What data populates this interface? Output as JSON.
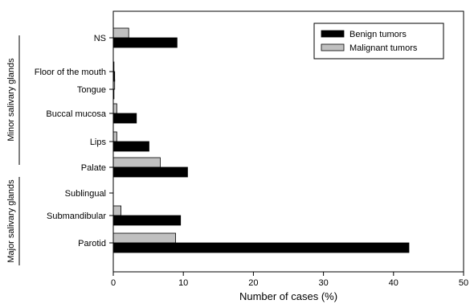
{
  "chart_data": {
    "type": "bar",
    "orientation": "horizontal",
    "title": "",
    "xlabel": "Number of cases (%)",
    "ylabel": "",
    "xlim": [
      0,
      50
    ],
    "xticks": [
      0,
      10,
      20,
      30,
      40,
      50
    ],
    "grid": false,
    "legend_position": "top-right",
    "categories": [
      "NS",
      "Floor of the mouth",
      "Tongue",
      "Buccal mucosa",
      "Lips",
      "Palate",
      "Sublingual",
      "Submandibular",
      "Parotid"
    ],
    "groups": [
      {
        "label": "Minor salivary glands",
        "categories": [
          "Floor of the mouth",
          "Tongue",
          "Buccal mucosa",
          "Lips",
          "Palate"
        ]
      },
      {
        "label": "Major salivary glands",
        "categories": [
          "Sublingual",
          "Submandibular",
          "Parotid"
        ]
      }
    ],
    "series": [
      {
        "name": "Malignant tumors",
        "color": "#c0c0c0",
        "values": [
          2.2,
          0.1,
          0.2,
          0.5,
          0.5,
          6.7,
          0,
          1.1,
          8.9
        ]
      },
      {
        "name": "Benign tumors",
        "color": "#000000",
        "values": [
          9.1,
          0.2,
          0.1,
          3.3,
          5.1,
          10.6,
          0,
          9.6,
          42.2
        ]
      }
    ],
    "legend_order": [
      "Benign tumors",
      "Malignant tumors"
    ]
  }
}
